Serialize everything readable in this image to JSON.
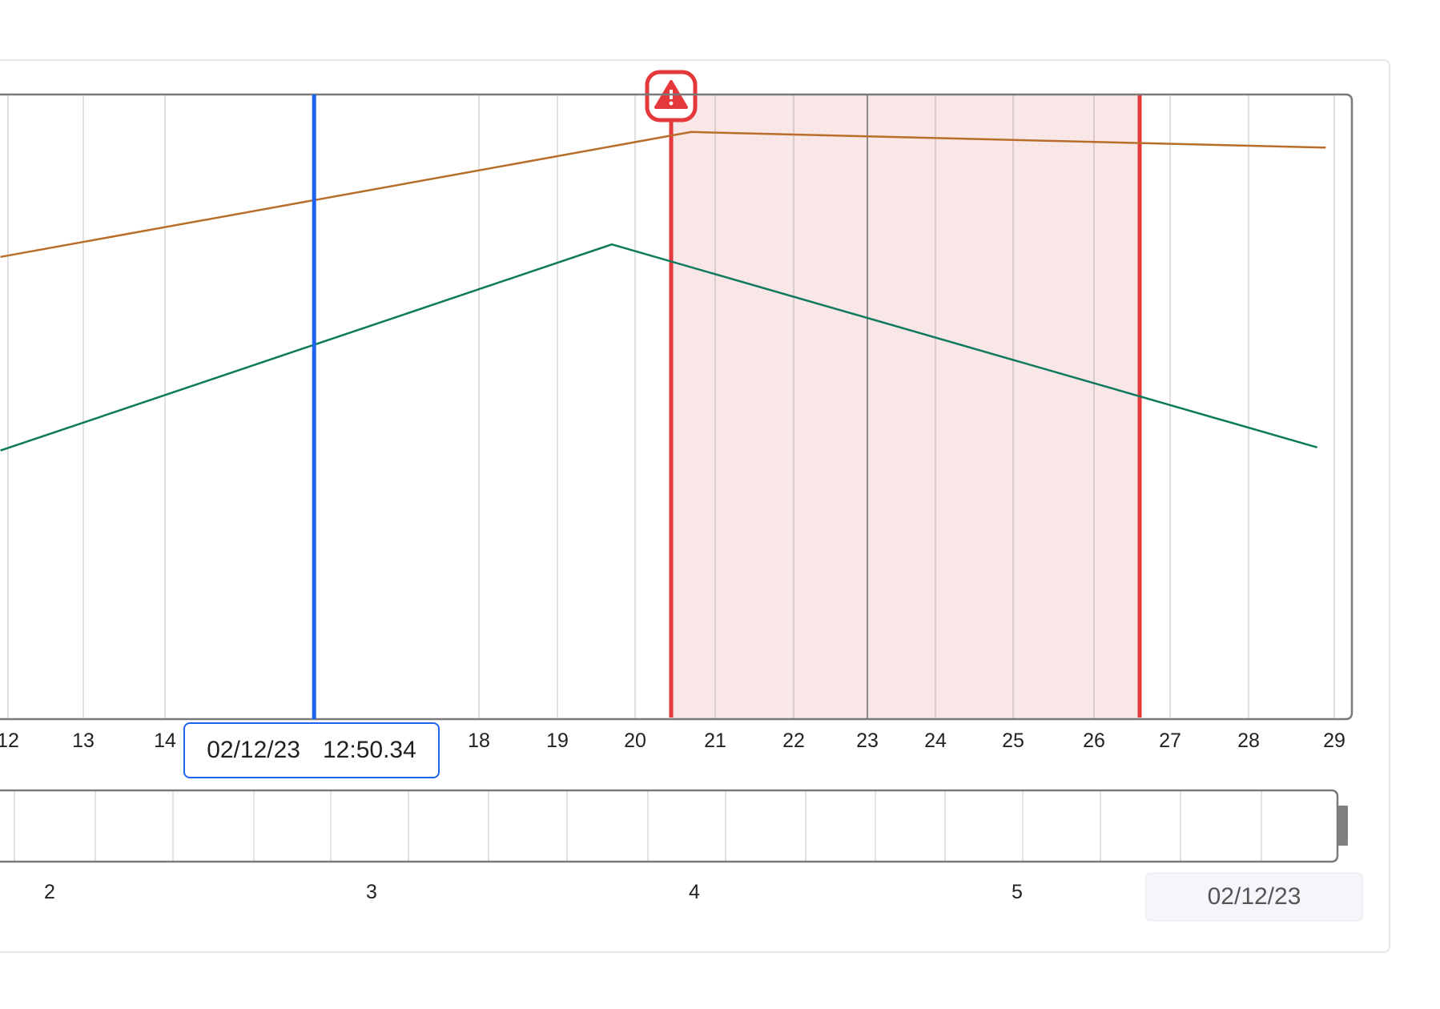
{
  "chart_data": {
    "type": "line",
    "x_ticks": [
      "12",
      "13",
      "14",
      "18",
      "19",
      "20",
      "21",
      "22",
      "23",
      "24",
      "25",
      "26",
      "27",
      "28",
      "29"
    ],
    "series": [
      {
        "color": "#b86e2a",
        "points": [
          [
            11.9,
            74
          ],
          [
            20.7,
            94
          ],
          [
            28.9,
            91.5
          ]
        ]
      },
      {
        "color": "#0e7a5c",
        "points": [
          [
            11.9,
            43
          ],
          [
            19.7,
            76
          ],
          [
            28.8,
            43.5
          ]
        ]
      }
    ],
    "ylim": [
      0,
      100
    ],
    "cursor": {
      "x": 15.9,
      "date": "02/12/23",
      "time": "12:50.34",
      "color": "#1d63ee"
    },
    "alert_region": {
      "start": 20.45,
      "end": 26.6,
      "fill": "#f9e6e6",
      "color": "#e5383b"
    },
    "navigator_ticks": [
      "2",
      "3",
      "4",
      "5"
    ],
    "navigator_date": "02/12/23"
  }
}
